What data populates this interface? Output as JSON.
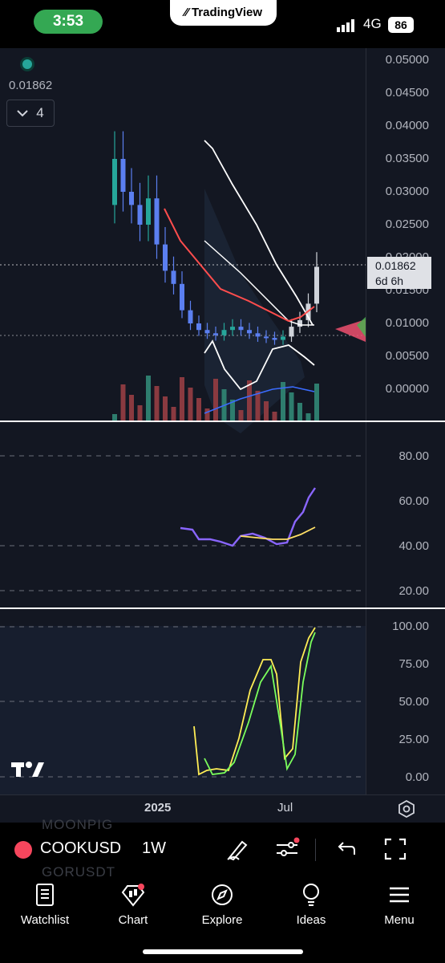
{
  "status_bar": {
    "time": "3:53",
    "app_pill": "TradingView",
    "network": "4G",
    "battery": "86"
  },
  "chart": {
    "last_price": "0.01862",
    "indicator_count": "4",
    "price_tag": {
      "price": "0.01862",
      "countdown": "6d 6h"
    },
    "price_axis": [
      "0.05000",
      "0.04500",
      "0.04000",
      "0.03500",
      "0.03000",
      "0.02500",
      "0.02000",
      "0.01500",
      "0.01000",
      "0.00500",
      "0.00000"
    ],
    "rsi_axis": [
      "80.00",
      "60.00",
      "40.00",
      "20.00"
    ],
    "stoch_axis": [
      "100.00",
      "75.00",
      "50.00",
      "25.00",
      "0.00"
    ],
    "x_axis": [
      "2025",
      "Jul"
    ]
  },
  "chart_data": {
    "type": "candlestick",
    "timeframe": "1W",
    "ylim": [
      0,
      0.05
    ],
    "candles_approx_close": [
      0.035,
      0.03,
      0.028,
      0.025,
      0.029,
      0.022,
      0.018,
      0.016,
      0.012,
      0.01,
      0.009,
      0.0085,
      0.0082,
      0.009,
      0.0095,
      0.009,
      0.0085,
      0.008,
      0.0078,
      0.0075,
      0.008,
      0.0095,
      0.0105,
      0.013,
      0.0186
    ],
    "rsi": {
      "ylim": [
        0,
        100
      ],
      "current": 66
    },
    "stochastic": {
      "ylim": [
        0,
        100
      ],
      "current": 100
    }
  },
  "toolbar": {
    "ghost_top": "MOONPIG",
    "ghost_bottom": "GORUSDT",
    "symbol": "COOKUSD",
    "interval": "1W"
  },
  "tabs": [
    {
      "label": "Watchlist",
      "icon": "book-icon"
    },
    {
      "label": "Chart",
      "icon": "chart-icon"
    },
    {
      "label": "Explore",
      "icon": "compass-icon"
    },
    {
      "label": "Ideas",
      "icon": "bulb-icon"
    },
    {
      "label": "Menu",
      "icon": "menu-icon"
    }
  ],
  "colors": {
    "up": "#26a69a",
    "down": "#5b7ff0",
    "sma": "#ff4d4d",
    "band": "#ffffff",
    "rsi": "#8a66ff",
    "rsi_ma": "#ffe066",
    "stoch_k": "#7bff5c",
    "stoch_d": "#ffee55"
  }
}
